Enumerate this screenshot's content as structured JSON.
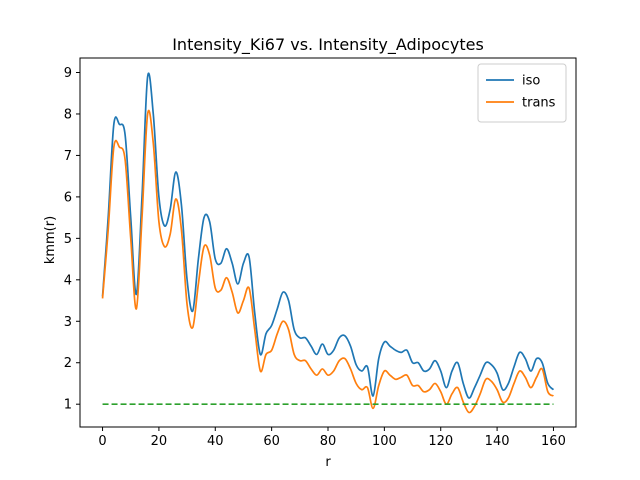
{
  "chart_data": {
    "type": "line",
    "title": "Intensity_Ki67 vs. Intensity_Adipocytes",
    "xlabel": "r",
    "ylabel": "kmm(r)",
    "xlim": [
      -8,
      168
    ],
    "ylim": [
      0.45,
      9.35
    ],
    "xticks": [
      "0",
      "20",
      "40",
      "60",
      "80",
      "100",
      "120",
      "140",
      "160"
    ],
    "yticks": [
      "1",
      "2",
      "3",
      "4",
      "5",
      "6",
      "7",
      "8",
      "9"
    ],
    "grid": false,
    "legend_position": "top-right",
    "series": [
      {
        "name": "iso",
        "color": "#1f77b4",
        "style": "solid",
        "points": [
          [
            0,
            3.6
          ],
          [
            2,
            5.5
          ],
          [
            4,
            7.75
          ],
          [
            6,
            7.75
          ],
          [
            8,
            7.5
          ],
          [
            10,
            5.5
          ],
          [
            12,
            3.65
          ],
          [
            14,
            6.0
          ],
          [
            16,
            8.9
          ],
          [
            18,
            8.0
          ],
          [
            20,
            6.0
          ],
          [
            22,
            5.3
          ],
          [
            24,
            5.7
          ],
          [
            26,
            6.6
          ],
          [
            28,
            5.8
          ],
          [
            30,
            4.0
          ],
          [
            32,
            3.25
          ],
          [
            34,
            4.5
          ],
          [
            36,
            5.5
          ],
          [
            38,
            5.4
          ],
          [
            40,
            4.5
          ],
          [
            42,
            4.4
          ],
          [
            44,
            4.75
          ],
          [
            46,
            4.4
          ],
          [
            48,
            3.9
          ],
          [
            50,
            4.4
          ],
          [
            52,
            4.55
          ],
          [
            54,
            3.2
          ],
          [
            56,
            2.2
          ],
          [
            58,
            2.7
          ],
          [
            60,
            2.9
          ],
          [
            62,
            3.3
          ],
          [
            64,
            3.7
          ],
          [
            66,
            3.5
          ],
          [
            68,
            2.8
          ],
          [
            70,
            2.6
          ],
          [
            72,
            2.6
          ],
          [
            74,
            2.4
          ],
          [
            76,
            2.2
          ],
          [
            78,
            2.45
          ],
          [
            80,
            2.2
          ],
          [
            82,
            2.3
          ],
          [
            84,
            2.6
          ],
          [
            86,
            2.65
          ],
          [
            88,
            2.4
          ],
          [
            90,
            1.95
          ],
          [
            92,
            1.8
          ],
          [
            94,
            1.9
          ],
          [
            96,
            1.2
          ],
          [
            98,
            2.1
          ],
          [
            100,
            2.5
          ],
          [
            102,
            2.4
          ],
          [
            104,
            2.3
          ],
          [
            106,
            2.25
          ],
          [
            108,
            2.3
          ],
          [
            110,
            2.0
          ],
          [
            112,
            2.0
          ],
          [
            114,
            1.8
          ],
          [
            116,
            1.85
          ],
          [
            118,
            2.05
          ],
          [
            120,
            1.8
          ],
          [
            122,
            1.4
          ],
          [
            124,
            1.8
          ],
          [
            126,
            2.0
          ],
          [
            128,
            1.5
          ],
          [
            130,
            1.15
          ],
          [
            132,
            1.4
          ],
          [
            134,
            1.7
          ],
          [
            136,
            2.0
          ],
          [
            138,
            1.95
          ],
          [
            140,
            1.75
          ],
          [
            142,
            1.35
          ],
          [
            144,
            1.5
          ],
          [
            146,
            1.9
          ],
          [
            148,
            2.25
          ],
          [
            150,
            2.1
          ],
          [
            152,
            1.8
          ],
          [
            154,
            2.1
          ],
          [
            156,
            2.0
          ],
          [
            158,
            1.5
          ],
          [
            160,
            1.35
          ]
        ]
      },
      {
        "name": "trans",
        "color": "#ff7f0e",
        "style": "solid",
        "points": [
          [
            0,
            3.55
          ],
          [
            2,
            5.2
          ],
          [
            4,
            7.2
          ],
          [
            6,
            7.2
          ],
          [
            8,
            6.9
          ],
          [
            10,
            5.0
          ],
          [
            12,
            3.3
          ],
          [
            14,
            5.5
          ],
          [
            16,
            8.0
          ],
          [
            18,
            7.3
          ],
          [
            20,
            5.4
          ],
          [
            22,
            4.8
          ],
          [
            24,
            5.1
          ],
          [
            26,
            5.95
          ],
          [
            28,
            5.2
          ],
          [
            30,
            3.4
          ],
          [
            32,
            2.85
          ],
          [
            34,
            3.9
          ],
          [
            36,
            4.8
          ],
          [
            38,
            4.6
          ],
          [
            40,
            3.8
          ],
          [
            42,
            3.75
          ],
          [
            44,
            4.05
          ],
          [
            46,
            3.7
          ],
          [
            48,
            3.2
          ],
          [
            50,
            3.5
          ],
          [
            52,
            3.8
          ],
          [
            54,
            2.8
          ],
          [
            56,
            1.8
          ],
          [
            58,
            2.2
          ],
          [
            60,
            2.3
          ],
          [
            62,
            2.7
          ],
          [
            64,
            3.0
          ],
          [
            66,
            2.8
          ],
          [
            68,
            2.2
          ],
          [
            70,
            2.05
          ],
          [
            72,
            2.05
          ],
          [
            74,
            1.85
          ],
          [
            76,
            1.7
          ],
          [
            78,
            1.85
          ],
          [
            80,
            1.7
          ],
          [
            82,
            1.8
          ],
          [
            84,
            2.05
          ],
          [
            86,
            2.1
          ],
          [
            88,
            1.85
          ],
          [
            90,
            1.5
          ],
          [
            92,
            1.35
          ],
          [
            94,
            1.4
          ],
          [
            96,
            0.9
          ],
          [
            98,
            1.45
          ],
          [
            100,
            1.8
          ],
          [
            102,
            1.7
          ],
          [
            104,
            1.6
          ],
          [
            106,
            1.65
          ],
          [
            108,
            1.7
          ],
          [
            110,
            1.45
          ],
          [
            112,
            1.45
          ],
          [
            114,
            1.3
          ],
          [
            116,
            1.35
          ],
          [
            118,
            1.5
          ],
          [
            120,
            1.3
          ],
          [
            122,
            1.0
          ],
          [
            124,
            1.25
          ],
          [
            126,
            1.4
          ],
          [
            128,
            1.05
          ],
          [
            130,
            0.8
          ],
          [
            132,
            0.95
          ],
          [
            134,
            1.25
          ],
          [
            136,
            1.6
          ],
          [
            138,
            1.55
          ],
          [
            140,
            1.35
          ],
          [
            142,
            1.05
          ],
          [
            144,
            1.15
          ],
          [
            146,
            1.5
          ],
          [
            148,
            1.8
          ],
          [
            150,
            1.65
          ],
          [
            152,
            1.4
          ],
          [
            154,
            1.65
          ],
          [
            156,
            1.85
          ],
          [
            158,
            1.3
          ],
          [
            160,
            1.2
          ]
        ]
      },
      {
        "name": "",
        "color": "#2ca02c",
        "style": "dashed",
        "points": [
          [
            0,
            1.0
          ],
          [
            160,
            1.0
          ]
        ]
      }
    ]
  }
}
